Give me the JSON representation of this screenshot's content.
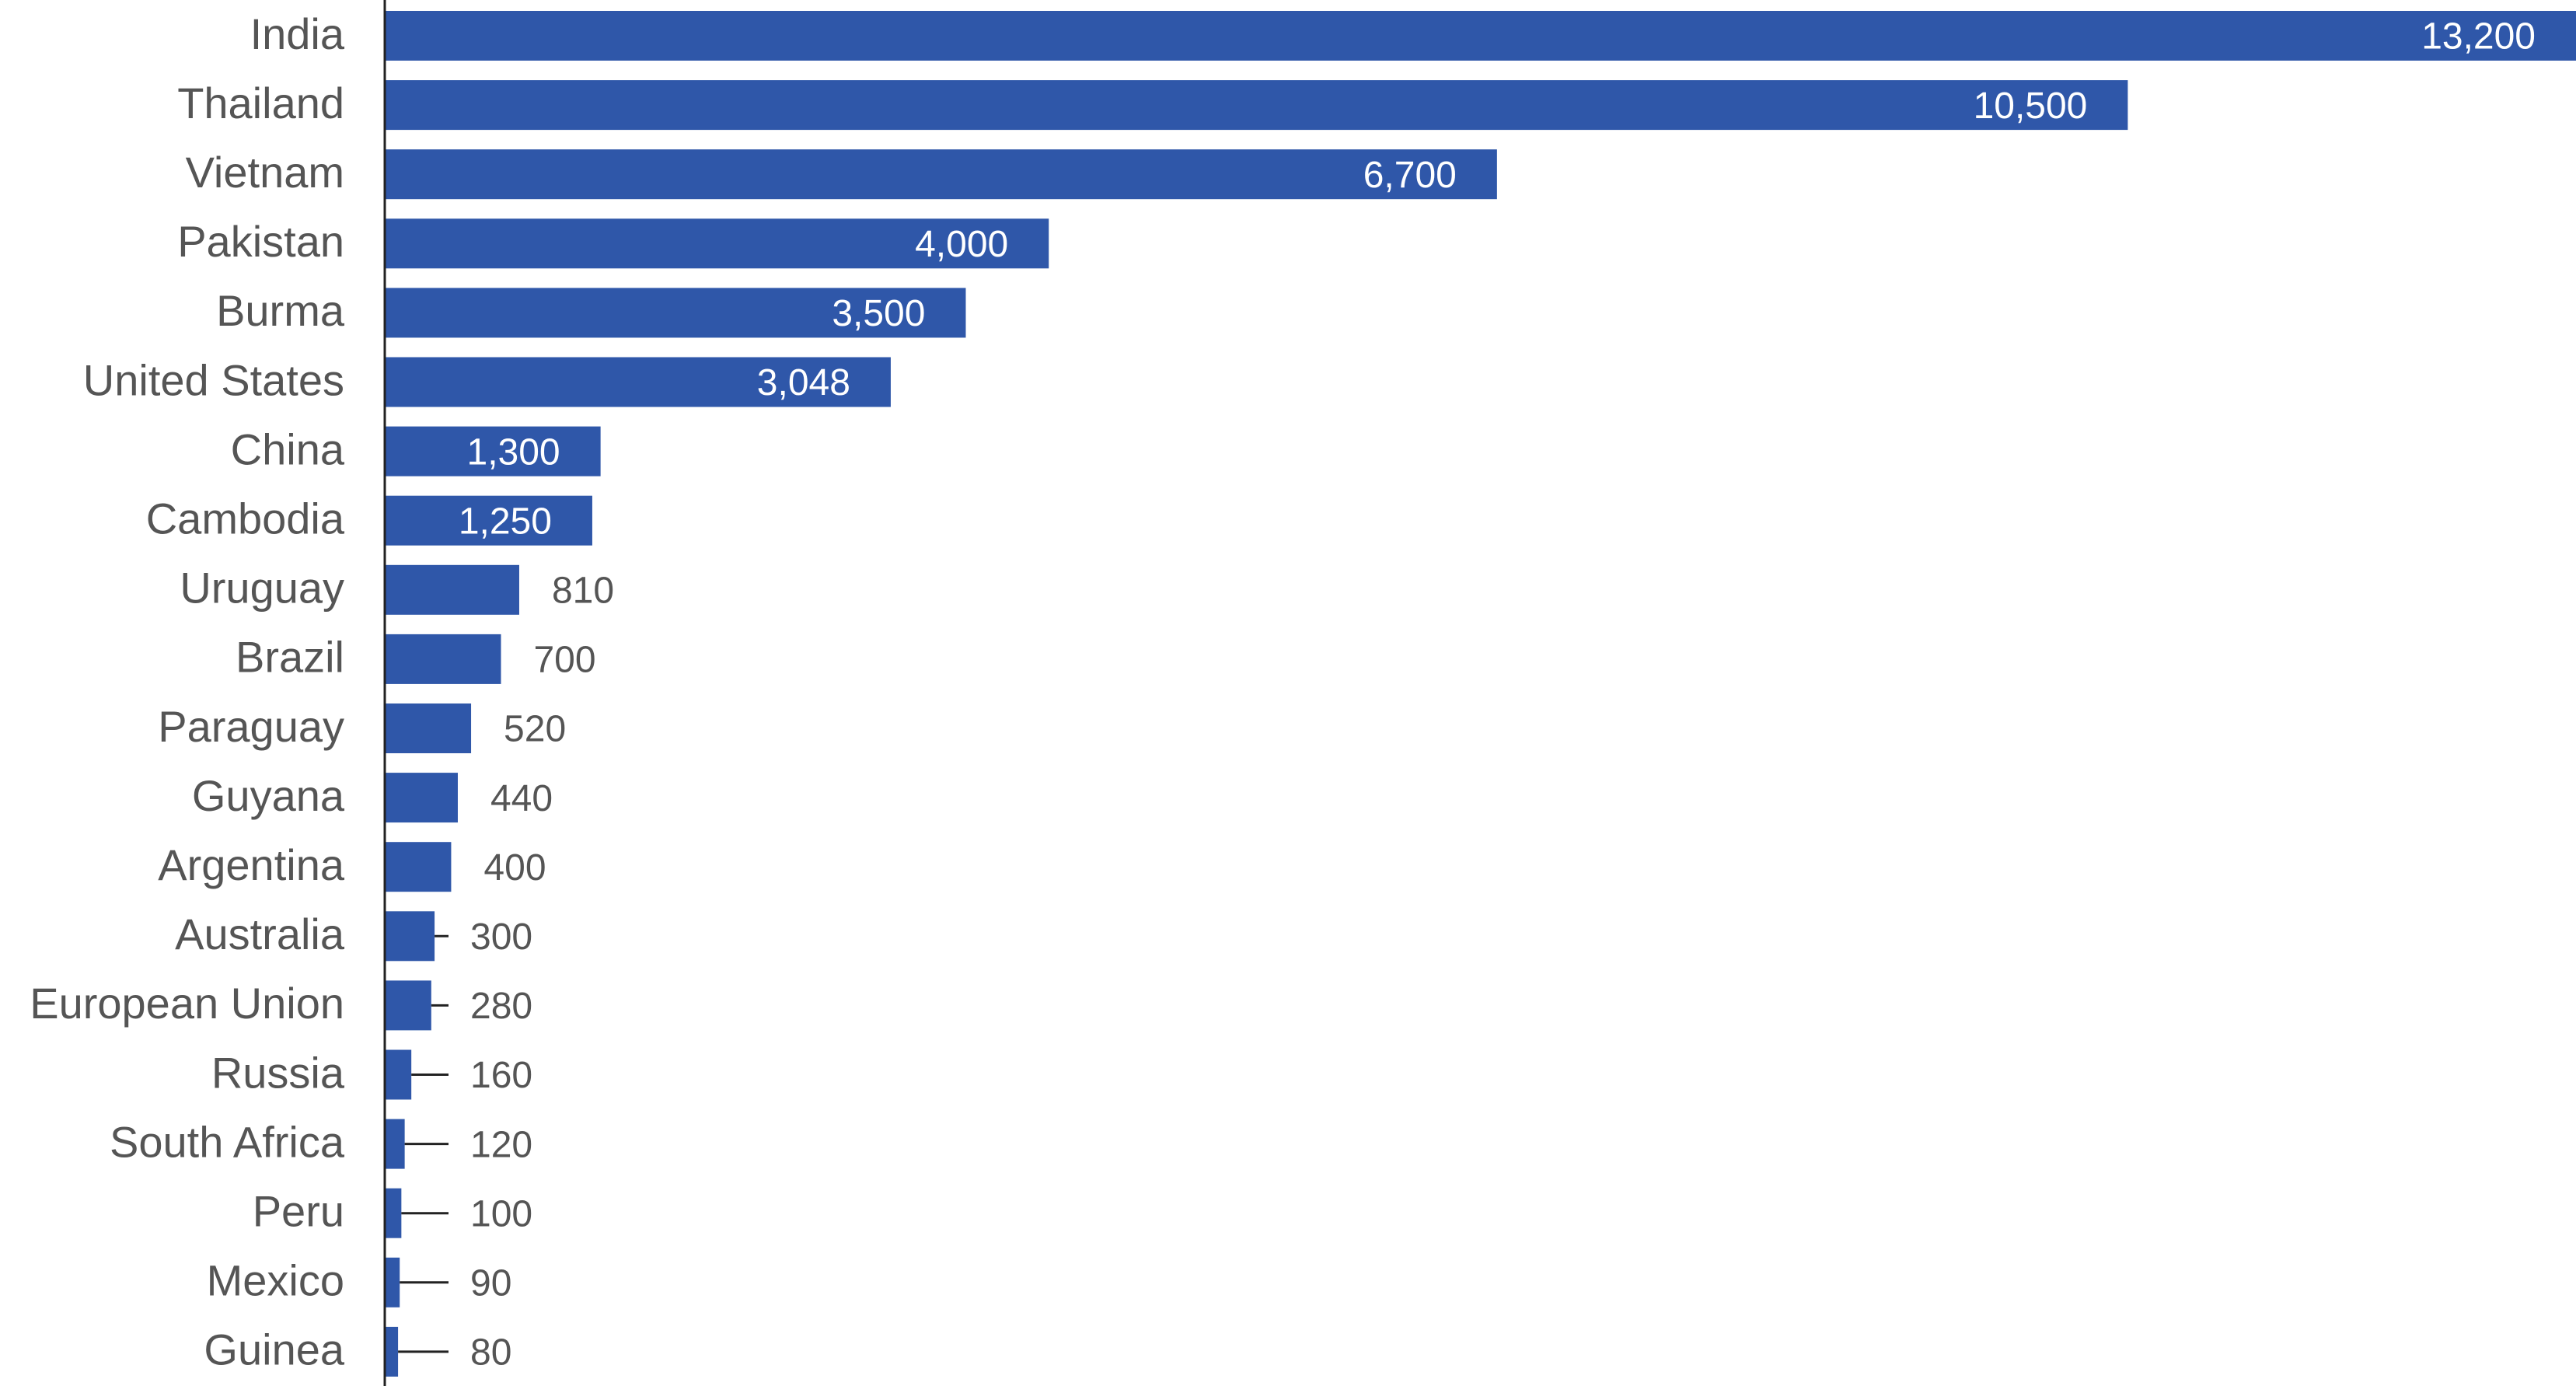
{
  "chart_data": {
    "type": "bar",
    "orientation": "horizontal",
    "categories": [
      "India",
      "Thailand",
      "Vietnam",
      "Pakistan",
      "Burma",
      "United States",
      "China",
      "Cambodia",
      "Uruguay",
      "Brazil",
      "Paraguay",
      "Guyana",
      "Argentina",
      "Australia",
      "European Union",
      "Russia",
      "South Africa",
      "Peru",
      "Mexico",
      "Guinea"
    ],
    "values": [
      13200,
      10500,
      6700,
      4000,
      3500,
      3048,
      1300,
      1250,
      810,
      700,
      520,
      440,
      400,
      300,
      280,
      160,
      120,
      100,
      90,
      80
    ],
    "value_labels": [
      "13,200",
      "10,500",
      "6,700",
      "4,000",
      "3,500",
      "3,048",
      "1,300",
      "1,250",
      "810",
      "700",
      "520",
      "440",
      "400",
      "300",
      "280",
      "160",
      "120",
      "100",
      "90",
      "80"
    ],
    "xlim": [
      0,
      13200
    ],
    "grid": false,
    "legend": "none",
    "colors": {
      "bar": "#2f57a9",
      "label_inside": "#ffffff",
      "label_outside": "#555555",
      "category_text": "#555555",
      "axis": "#222222",
      "leader": "#222222"
    }
  }
}
